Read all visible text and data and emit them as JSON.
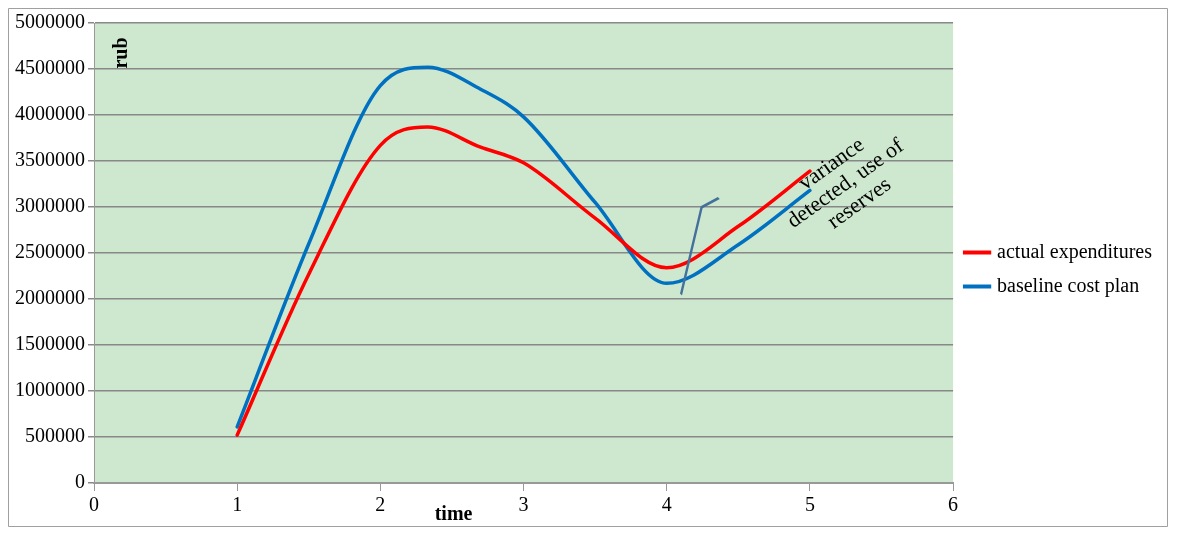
{
  "chart_data": {
    "type": "line",
    "xlabel": "time",
    "ylabel": "rub",
    "x": [
      1,
      1.5,
      2,
      2.33,
      2.7,
      3,
      3.5,
      4,
      4.5,
      5
    ],
    "series": [
      {
        "name": "actual expenditures",
        "color": "#ff0000",
        "values": [
          520000,
          2270000,
          3670000,
          3870000,
          3650000,
          3480000,
          2880000,
          2340000,
          2790000,
          3390000
        ]
      },
      {
        "name": "baseline cost plan",
        "color": "#0070c0",
        "values": [
          610000,
          2600000,
          4320000,
          4520000,
          4280000,
          3980000,
          3050000,
          2170000,
          2590000,
          3180000
        ]
      }
    ],
    "xlim": [
      0,
      6
    ],
    "xticks": [
      0,
      1,
      2,
      3,
      4,
      5,
      6
    ],
    "ylim": [
      0,
      5000000
    ],
    "yticks": [
      0,
      500000,
      1000000,
      1500000,
      2000000,
      2500000,
      3000000,
      3500000,
      4000000,
      4500000,
      5000000
    ],
    "grid": "y",
    "legend": "right",
    "marker": "none",
    "line_style": "solid",
    "annotations": [
      "variance detected, use of reserves"
    ]
  }
}
